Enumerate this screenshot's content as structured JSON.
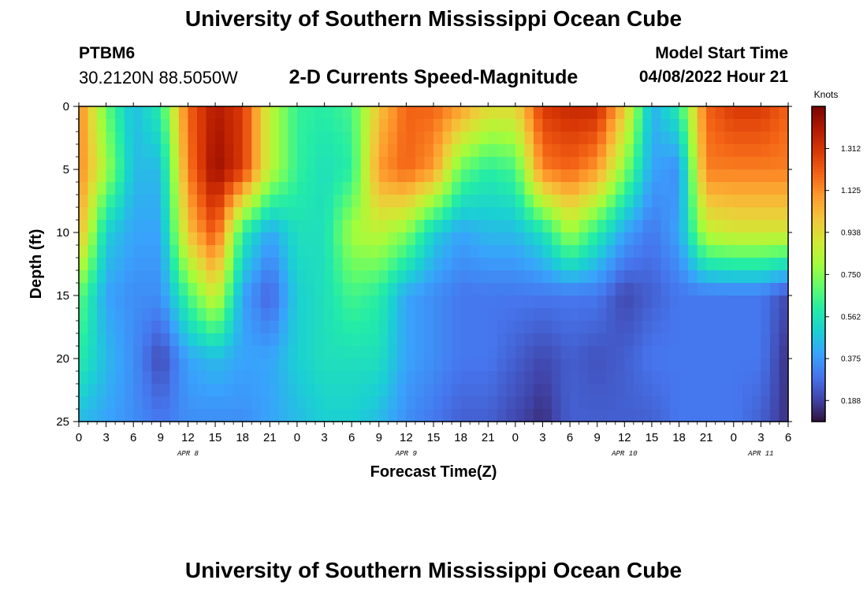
{
  "header": {
    "title": "University of Southern Mississippi Ocean Cube",
    "station_id": "PTBM6",
    "coords": "30.2120N  88.5050W",
    "subtitle": "2-D Currents Speed-Magnitude",
    "model_label": "Model Start Time",
    "model_time": "04/08/2022 Hour 21"
  },
  "footer": {
    "title": "University of Southern Mississippi Ocean Cube"
  },
  "colors": {
    "colormap": [
      "#30123b",
      "#4145ab",
      "#4675ed",
      "#39a2fc",
      "#1bcfd4",
      "#24eca6",
      "#61fc6c",
      "#a4fc3b",
      "#d1e834",
      "#f3c63a",
      "#fe9b2d",
      "#f36315",
      "#d93806",
      "#b11901",
      "#7a0402"
    ]
  },
  "chart_data": {
    "type": "heatmap",
    "title": "2-D Currents Speed-Magnitude",
    "xlabel": "Forecast Time(Z)",
    "ylabel": "Depth (ft)",
    "colorbar_label": "Knots",
    "colorbar_ticks": [
      "1.312",
      "1.125",
      "0.938",
      "0.750",
      "0.562",
      "0.375",
      "0.188"
    ],
    "colorbar_range": [
      0.094,
      1.5
    ],
    "x_tick_labels": [
      "0",
      "3",
      "6",
      "9",
      "12",
      "15",
      "18",
      "21",
      "0",
      "3",
      "6",
      "9",
      "12",
      "15",
      "18",
      "21",
      "0",
      "3",
      "6",
      "9",
      "12",
      "15",
      "18",
      "21",
      "0",
      "3",
      "6"
    ],
    "x_range_hours": [
      0,
      78
    ],
    "day_labels": [
      {
        "label": "APR 8",
        "hour": 12
      },
      {
        "label": "APR 9",
        "hour": 36
      },
      {
        "label": "APR 10",
        "hour": 60
      },
      {
        "label": "APR 11",
        "hour": 75
      }
    ],
    "y_tick_labels": [
      "0",
      "5",
      "10",
      "15",
      "20",
      "25"
    ],
    "ylim": [
      0,
      25
    ],
    "x_hours": [
      0,
      3,
      6,
      9,
      12,
      15,
      18,
      21,
      24,
      27,
      30,
      33,
      36,
      39,
      42,
      45,
      48,
      51,
      54,
      57,
      60,
      63,
      66,
      69,
      72,
      75,
      78
    ],
    "depths_ft": [
      0,
      5,
      10,
      15,
      20,
      25
    ],
    "values": [
      [
        1.15,
        0.7,
        0.45,
        0.6,
        1.2,
        1.4,
        1.3,
        0.85,
        0.62,
        0.6,
        0.65,
        1.0,
        1.2,
        1.2,
        1.1,
        0.95,
        0.95,
        1.3,
        1.35,
        1.35,
        1.0,
        0.42,
        0.6,
        1.2,
        1.3,
        1.3,
        1.2
      ],
      [
        1.15,
        0.8,
        0.45,
        0.45,
        1.15,
        1.45,
        1.3,
        0.85,
        0.62,
        0.55,
        0.6,
        1.1,
        1.2,
        1.1,
        0.7,
        0.6,
        0.65,
        1.15,
        1.2,
        1.1,
        0.75,
        0.4,
        0.35,
        1.15,
        1.15,
        1.15,
        1.15
      ],
      [
        1.05,
        0.5,
        0.4,
        0.4,
        1.0,
        1.25,
        0.6,
        0.4,
        0.55,
        0.55,
        0.8,
        0.85,
        0.75,
        0.5,
        0.4,
        0.45,
        0.45,
        0.55,
        0.8,
        0.6,
        0.4,
        0.3,
        0.4,
        0.85,
        0.9,
        0.9,
        0.9
      ],
      [
        0.7,
        0.4,
        0.35,
        0.35,
        0.65,
        0.9,
        0.4,
        0.25,
        0.5,
        0.55,
        0.65,
        0.6,
        0.4,
        0.35,
        0.3,
        0.3,
        0.3,
        0.3,
        0.3,
        0.3,
        0.2,
        0.25,
        0.3,
        0.3,
        0.3,
        0.3,
        0.2
      ],
      [
        0.6,
        0.45,
        0.35,
        0.2,
        0.4,
        0.45,
        0.4,
        0.4,
        0.5,
        0.55,
        0.55,
        0.55,
        0.4,
        0.35,
        0.3,
        0.3,
        0.25,
        0.2,
        0.25,
        0.22,
        0.25,
        0.3,
        0.3,
        0.3,
        0.3,
        0.3,
        0.15
      ],
      [
        0.45,
        0.4,
        0.35,
        0.3,
        0.35,
        0.35,
        0.35,
        0.4,
        0.45,
        0.5,
        0.5,
        0.45,
        0.35,
        0.3,
        0.25,
        0.25,
        0.2,
        0.15,
        0.25,
        0.25,
        0.25,
        0.25,
        0.3,
        0.3,
        0.3,
        0.25,
        0.15
      ]
    ]
  }
}
